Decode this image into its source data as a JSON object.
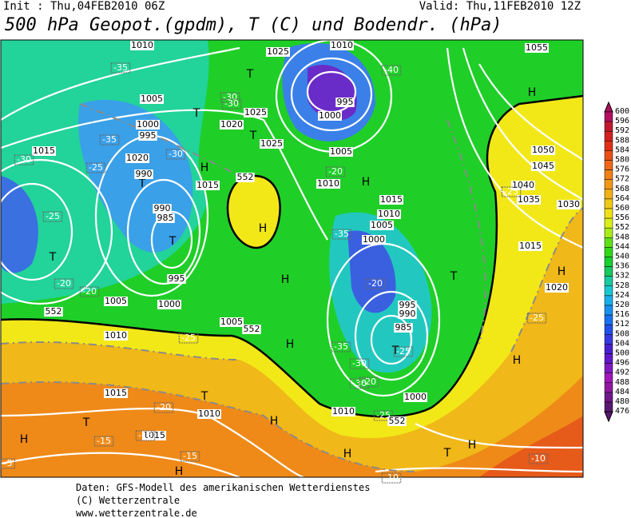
{
  "header": {
    "init": "Init : Thu,04FEB2010 06Z",
    "valid": "Valid: Thu,11FEB2010 12Z",
    "title": "500 hPa Geopot.(gpdm), T (C) und Bodendr. (hPa)"
  },
  "map": {
    "labels": [
      "H",
      "H",
      "H",
      "H",
      "H",
      "H",
      "H",
      "H",
      "H",
      "H",
      "H",
      "H",
      "H",
      "T",
      "T",
      "T",
      "T",
      "T",
      "T",
      "T",
      "T",
      "T",
      "T",
      "T",
      "1010",
      "1025",
      "1010",
      "1005",
      "1025",
      "1020",
      "1015",
      "1000",
      "995",
      "990",
      "985",
      "990",
      "995",
      "1000",
      "1005",
      "1010",
      "1015",
      "1020",
      "1025",
      "1000",
      "995",
      "1005",
      "1010",
      "1015",
      "1010",
      "1005",
      "1000",
      "995",
      "990",
      "985",
      "1000",
      "1010",
      "1005",
      "1055",
      "1050",
      "1045",
      "1040",
      "1035",
      "1030",
      "1015",
      "1020",
      "1015",
      "1010",
      "1015",
      "-35",
      "-30",
      "-35",
      "-30",
      "-25",
      "-25",
      "-20",
      "-20",
      "-25",
      "-30",
      "-35",
      "-30",
      "-35",
      "-25",
      "-20",
      "-15",
      "-15",
      "-10",
      "-10",
      "-15",
      "-20",
      "-30",
      "-25",
      "-40",
      "-25",
      "-20",
      "-20",
      "-5",
      "-30",
      "-25",
      "552",
      "552",
      "552",
      "552"
    ]
  },
  "colorbar": {
    "labels": [
      "600",
      "596",
      "592",
      "588",
      "584",
      "580",
      "576",
      "572",
      "568",
      "564",
      "560",
      "556",
      "552",
      "548",
      "544",
      "540",
      "536",
      "532",
      "528",
      "524",
      "520",
      "516",
      "512",
      "508",
      "504",
      "500",
      "496",
      "492",
      "488",
      "484",
      "480",
      "476"
    ]
  },
  "footer": {
    "lines": [
      "Daten: GFS-Modell des amerikanischen Wetterdienstes",
      "(C) Wetterzentrale",
      "www.wetterzentrale.de"
    ]
  }
}
